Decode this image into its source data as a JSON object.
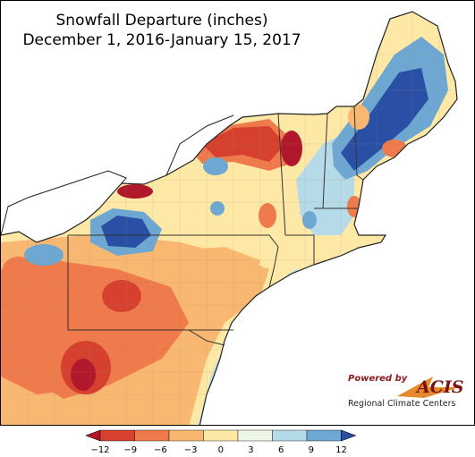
{
  "title": {
    "line1": "Snowfall Departure (inches)",
    "line2": "December 1, 2016-January 15, 2017"
  },
  "logo": {
    "powered_by": "Powered by",
    "brand": "ACIS",
    "subtitle": "Regional Climate Centers"
  },
  "legend": {
    "ticks": [
      "−12",
      "−9",
      "−6",
      "−3",
      "0",
      "3",
      "6",
      "9",
      "12"
    ],
    "colors": [
      "#b2182b",
      "#d6402f",
      "#ef7a4b",
      "#f9b872",
      "#fde8a5",
      "#eef6e6",
      "#b6dbe8",
      "#6ea8d2",
      "#2a50a6"
    ]
  },
  "colors": {
    "water": "#ffffff",
    "deep_red": "#b2182b",
    "red": "#d6402f",
    "orange": "#ef7a4b",
    "light_orange": "#f9b872",
    "pale_yellow": "#fde8a5",
    "near_white": "#eef6e6",
    "light_blue": "#b6dbe8",
    "blue": "#6ea8d2",
    "dark_blue": "#2a50a6"
  }
}
